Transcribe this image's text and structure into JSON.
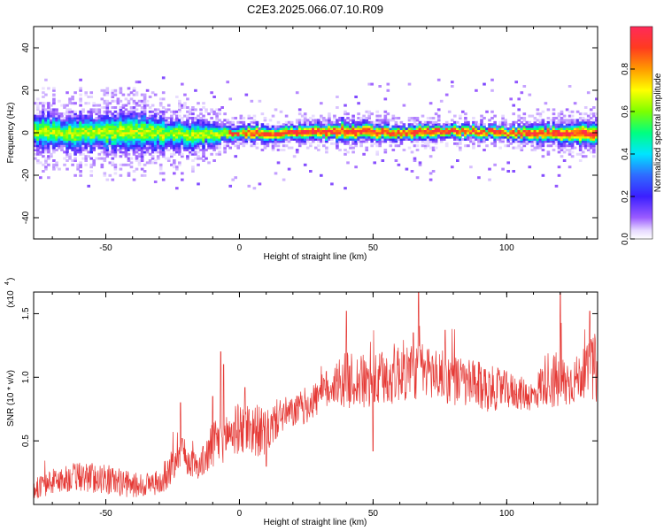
{
  "title": "C2E3.2025.066.07.10.R09",
  "colors": {
    "snr_line": "#e53935",
    "axis": "#000000",
    "background": "#ffffff"
  },
  "chart_data": [
    {
      "type": "heatmap",
      "xlabel": "Height of straight line (km)",
      "ylabel": "Frequency (Hz)",
      "xlim": [
        -77,
        134
      ],
      "ylim": [
        -50,
        50
      ],
      "xticks": [
        -50,
        0,
        50,
        100
      ],
      "yticks": [
        -40,
        -20,
        0,
        20,
        40
      ],
      "colorbar": {
        "label": "Normalized spectral amplitude",
        "range": [
          0.0,
          1.0
        ],
        "ticks": [
          0.0,
          0.2,
          0.4,
          0.6,
          0.8
        ],
        "colormap": "rainbow (white-purple-blue-cyan-green-yellow-orange-red)"
      },
      "grid": false,
      "description_of_data": "Signal band centered near 0 Hz across all heights; spread about ±8 Hz below 0 km narrowing to about ±3 Hz above; peak amplitude (red) concentrated near 0 Hz for heights above 0 km.",
      "band_profile": {
        "x": [
          -77,
          -60,
          -40,
          -20,
          0,
          20,
          40,
          60,
          80,
          100,
          120,
          134
        ],
        "center_hz": [
          1,
          0,
          1,
          -1,
          0,
          0,
          1,
          0,
          1,
          0,
          0,
          0
        ],
        "halfwidth_hz": [
          7,
          7,
          8,
          6,
          3,
          3,
          4,
          3,
          3,
          3,
          4,
          5
        ]
      }
    },
    {
      "type": "line",
      "xlabel": "Height of straight line (km)",
      "ylabel": "SNR (10 * v/v)",
      "multiplier_label": "(x10^4)",
      "xlim": [
        -77,
        134
      ],
      "ylim": [
        0,
        1.67
      ],
      "xticks": [
        -50,
        0,
        50,
        100
      ],
      "yticks": [
        0.5,
        1.0,
        1.5
      ],
      "ytick_labels": [
        "0.5",
        "1.0",
        "1.5"
      ],
      "grid": false,
      "series": [
        {
          "x": [
            -77,
            -70,
            -60,
            -50,
            -40,
            -30,
            -25,
            -22,
            -20,
            -15,
            -10,
            -5,
            0,
            5,
            10,
            15,
            20,
            25,
            30,
            35,
            40,
            50,
            60,
            70,
            80,
            90,
            100,
            110,
            115,
            120,
            125,
            130,
            134
          ],
          "mean": [
            0.12,
            0.18,
            0.22,
            0.2,
            0.15,
            0.17,
            0.3,
            0.5,
            0.35,
            0.3,
            0.45,
            0.55,
            0.6,
            0.6,
            0.55,
            0.7,
            0.72,
            0.78,
            0.85,
            0.95,
            0.98,
            0.95,
            1.05,
            1.05,
            0.98,
            0.92,
            0.9,
            0.85,
            1.0,
            0.95,
            0.97,
            1.05,
            1.08
          ],
          "spread": [
            0.08,
            0.1,
            0.12,
            0.12,
            0.1,
            0.1,
            0.15,
            0.2,
            0.12,
            0.1,
            0.2,
            0.2,
            0.2,
            0.22,
            0.18,
            0.15,
            0.12,
            0.15,
            0.15,
            0.18,
            0.22,
            0.22,
            0.25,
            0.22,
            0.2,
            0.2,
            0.15,
            0.12,
            0.22,
            0.25,
            0.18,
            0.2,
            0.3
          ],
          "spikes": [
            [
              -22,
              0.8
            ],
            [
              -10,
              0.85
            ],
            [
              -7,
              1.2
            ],
            [
              -6,
              1.1
            ],
            [
              2,
              0.92
            ],
            [
              10,
              0.3
            ],
            [
              40,
              1.52
            ],
            [
              50,
              0.42
            ],
            [
              65,
              1.35
            ],
            [
              67,
              1.67
            ],
            [
              77,
              1.37
            ],
            [
              120,
              1.67
            ],
            [
              131,
              1.52
            ]
          ]
        }
      ]
    }
  ]
}
